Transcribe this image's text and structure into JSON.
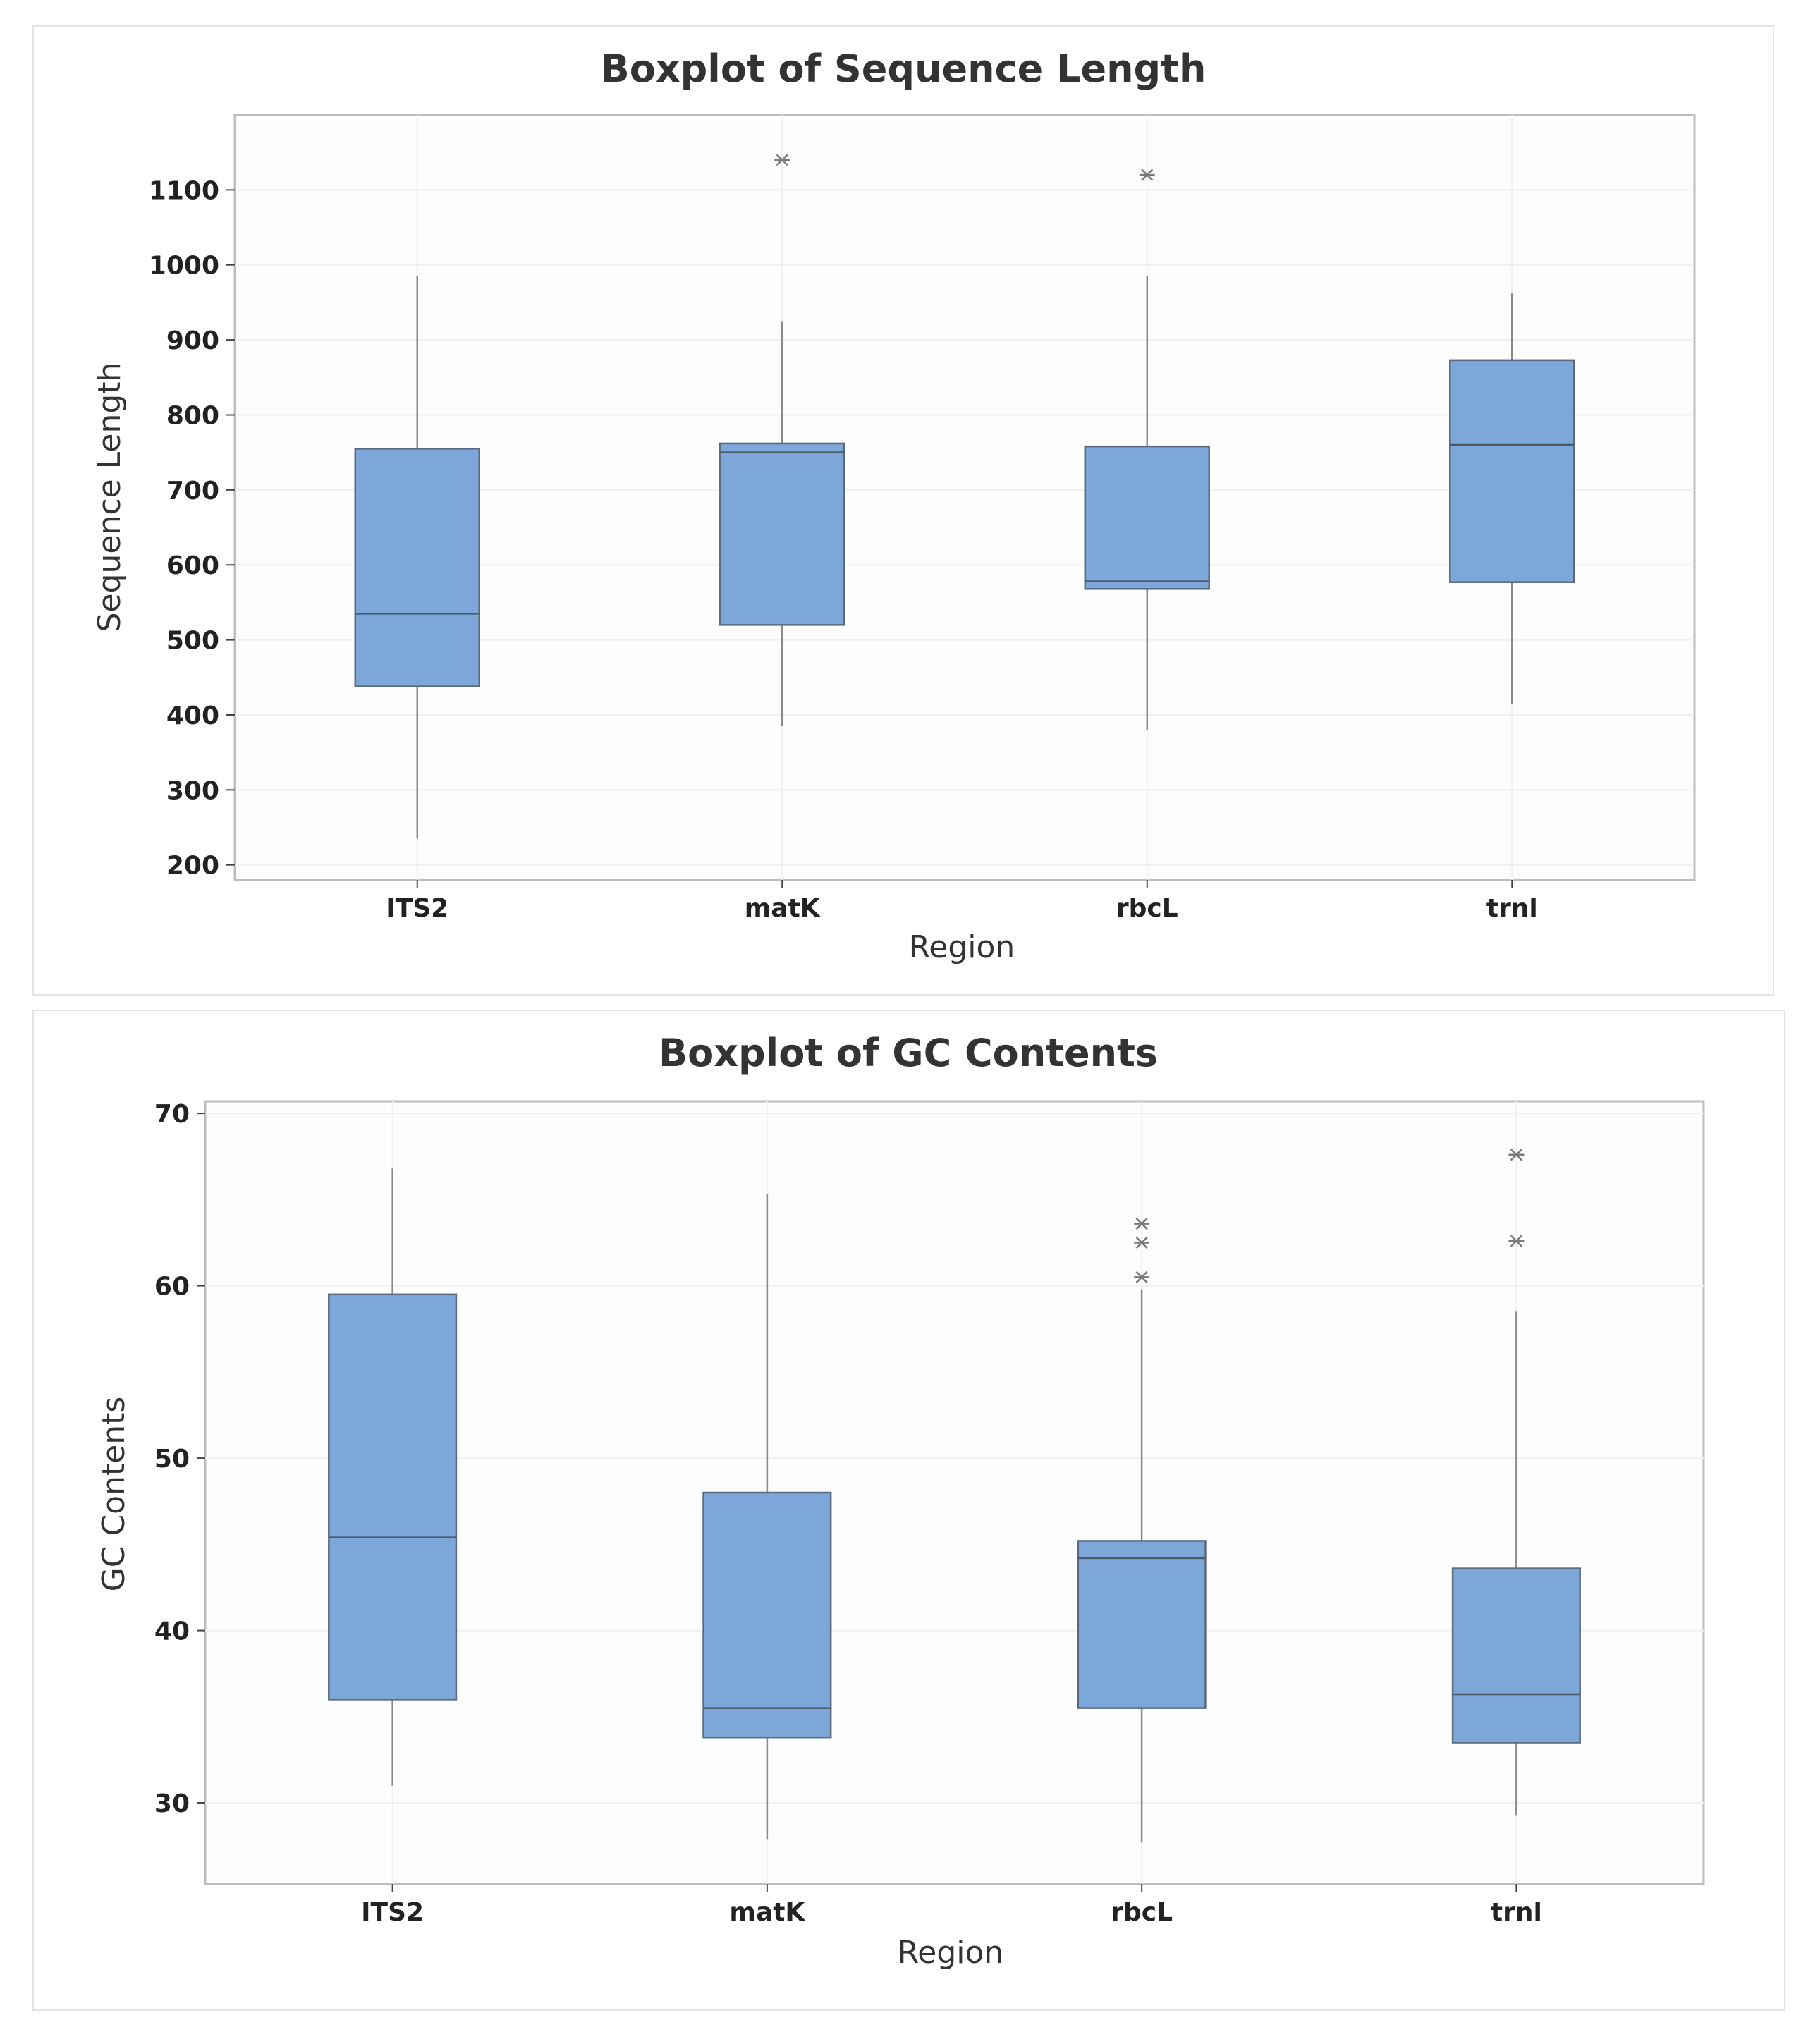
{
  "chart_data": [
    {
      "type": "boxplot",
      "title": "Boxplot of Sequence Length",
      "xlabel": "Region",
      "ylabel": "Sequence Length",
      "ylim": [
        180,
        1200
      ],
      "yticks": [
        200,
        300,
        400,
        500,
        600,
        700,
        800,
        900,
        1000,
        1100
      ],
      "categories": [
        "ITS2",
        "matK",
        "rbcL",
        "trnl"
      ],
      "boxes": [
        {
          "name": "ITS2",
          "whisker_low": 235,
          "q1": 438,
          "median": 535,
          "q3": 755,
          "whisker_high": 985,
          "outliers": []
        },
        {
          "name": "matK",
          "whisker_low": 385,
          "q1": 520,
          "median": 750,
          "q3": 762,
          "whisker_high": 925,
          "outliers": [
            1140
          ]
        },
        {
          "name": "rbcL",
          "whisker_low": 380,
          "q1": 568,
          "median": 578,
          "q3": 758,
          "whisker_high": 985,
          "outliers": [
            1120
          ]
        },
        {
          "name": "trnl",
          "whisker_low": 415,
          "q1": 577,
          "median": 760,
          "q3": 873,
          "whisker_high": 962,
          "outliers": []
        }
      ],
      "grid": true
    },
    {
      "type": "boxplot",
      "title": "Boxplot of GC Contents",
      "xlabel": "Region",
      "ylabel": "GC Contents",
      "ylim": [
        25.3,
        70.7
      ],
      "yticks": [
        30,
        40,
        50,
        60,
        70
      ],
      "categories": [
        "ITS2",
        "matK",
        "rbcL",
        "trnl"
      ],
      "boxes": [
        {
          "name": "ITS2",
          "whisker_low": 31.0,
          "q1": 36.0,
          "median": 45.4,
          "q3": 59.5,
          "whisker_high": 66.8,
          "outliers": []
        },
        {
          "name": "matK",
          "whisker_low": 27.9,
          "q1": 33.8,
          "median": 35.5,
          "q3": 48.0,
          "whisker_high": 65.3,
          "outliers": []
        },
        {
          "name": "rbcL",
          "whisker_low": 27.7,
          "q1": 35.5,
          "median": 44.2,
          "q3": 45.2,
          "whisker_high": 59.8,
          "outliers": [
            60.5,
            62.5,
            63.6
          ]
        },
        {
          "name": "trnl",
          "whisker_low": 29.3,
          "q1": 33.5,
          "median": 36.3,
          "q3": 43.6,
          "whisker_high": 58.5,
          "outliers": [
            62.6,
            67.6
          ]
        }
      ],
      "grid": true
    }
  ]
}
